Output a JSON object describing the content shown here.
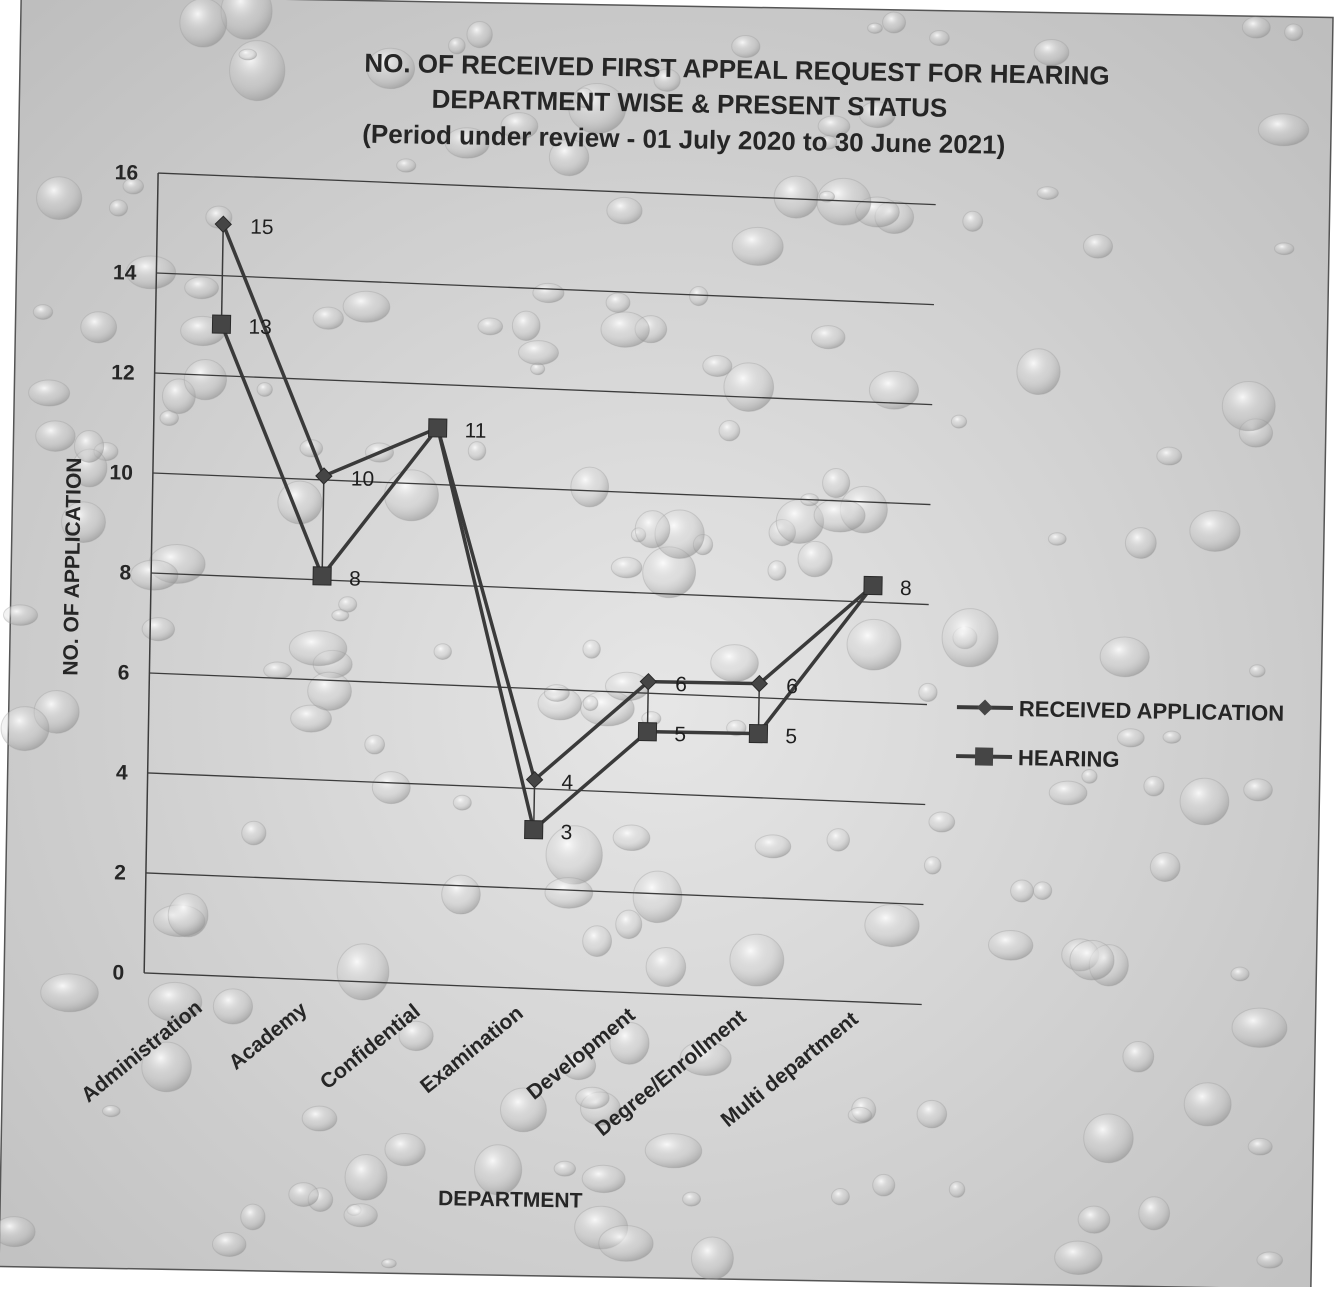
{
  "chart_data": {
    "type": "line",
    "title_lines": [
      "NO. OF RECEIVED FIRST APPEAL REQUEST FOR HEARING",
      "DEPARTMENT WISE & PRESENT STATUS",
      "(Period under review - 01 July 2020 to 30 June 2021)"
    ],
    "xlabel": "DEPARTMENT",
    "ylabel": "NO. OF APPLICATION",
    "categories": [
      "Administration",
      "Academy",
      "Confidential",
      "Examination",
      "Development",
      "Degree/Enrollment",
      "Multi department"
    ],
    "ylim": [
      0,
      16
    ],
    "yticks": [
      "0",
      "2",
      "4",
      "6",
      "8",
      "10",
      "12",
      "14",
      "16"
    ],
    "grid": true,
    "legend_position": "right",
    "series": [
      {
        "name": "RECEIVED APPLICATION",
        "marker": "diamond",
        "values": [
          15,
          10,
          11,
          4,
          6,
          6,
          8
        ],
        "labels": [
          "15",
          "10",
          "",
          "4",
          "6",
          "6",
          ""
        ]
      },
      {
        "name": "HEARING",
        "marker": "square",
        "values": [
          13,
          8,
          11,
          3,
          5,
          5,
          8
        ],
        "labels": [
          "13",
          "8",
          "11",
          "3",
          "5",
          "5",
          "8"
        ]
      }
    ],
    "colors": {
      "line": "#3a3a3a",
      "marker": "#454545",
      "grid": "#3c3c3c",
      "text": "#262626"
    }
  }
}
